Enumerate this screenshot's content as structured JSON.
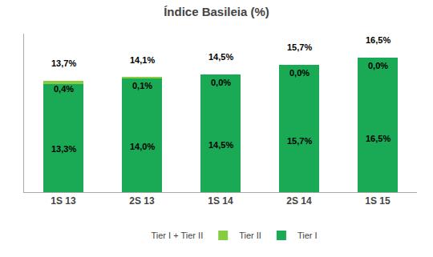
{
  "chart_data": {
    "type": "bar",
    "title": "Índice Basileia (%)",
    "categories": [
      "1S 13",
      "2S 13",
      "1S 14",
      "2S 14",
      "1S 15"
    ],
    "stacked": true,
    "data_labels": true,
    "series": [
      {
        "name": "Tier I",
        "color": "#1aaa55",
        "values": [
          13.3,
          14.0,
          14.5,
          15.7,
          16.5
        ],
        "value_labels": [
          "13,3%",
          "14,0%",
          "14,5%",
          "15,7%",
          "16,5%"
        ]
      },
      {
        "name": "Tier II",
        "color": "#88cc44",
        "values": [
          0.4,
          0.1,
          0.0,
          0.0,
          0.0
        ],
        "value_labels": [
          "0,4%",
          "0,1%",
          "0,0%",
          "0,0%",
          "0,0%"
        ]
      },
      {
        "name": "Tier I + Tier II",
        "type": "text",
        "values": [
          13.7,
          14.1,
          14.5,
          15.7,
          16.5
        ],
        "value_labels": [
          "13,7%",
          "14,1%",
          "14,5%",
          "15,7%",
          "16,5%"
        ]
      }
    ],
    "ylim": [
      0,
      19.5
    ],
    "tick_labels": "x",
    "legend": "bottom",
    "grid": false
  }
}
